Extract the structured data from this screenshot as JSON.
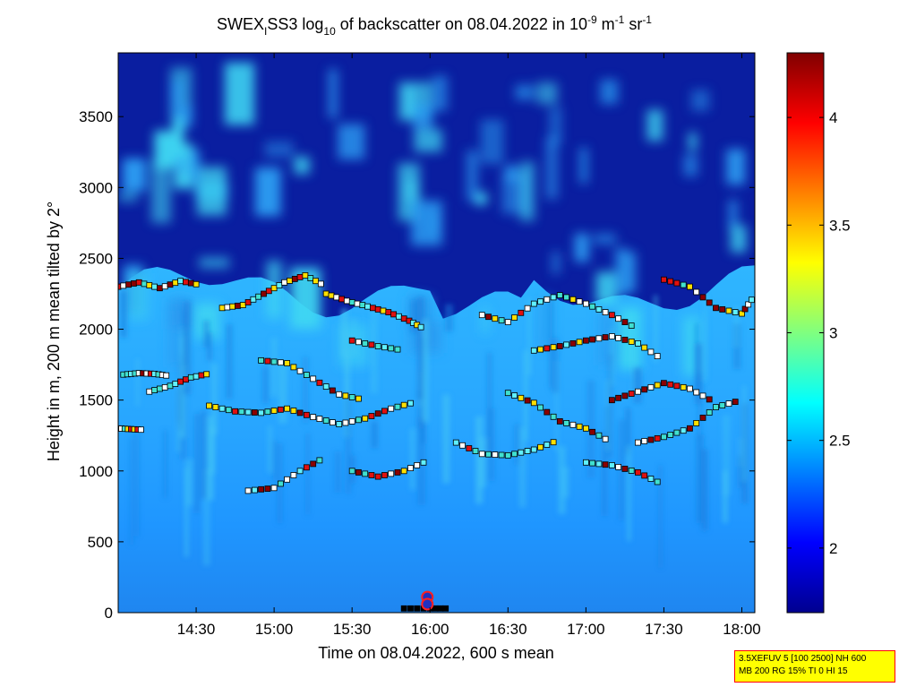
{
  "chart_data": {
    "type": "heatmap",
    "title_parts": {
      "t1": "SWEX",
      "t2": "I",
      "t3": "SS3 log",
      "t4": "10",
      "t5": " of backscatter on 08.04.2022 in 10",
      "t6": "-9",
      "t7": " m",
      "t8": "-1",
      "t9": " sr",
      "t10": "-1"
    },
    "xlabel": "Time on 08.04.2022, 600 s mean",
    "ylabel": "Height in m, 200 m mean tilted by 2°",
    "xlim": [
      "14:00",
      "18:05"
    ],
    "ylim": [
      0,
      3950
    ],
    "x_ticks": [
      "14:30",
      "15:00",
      "15:30",
      "16:00",
      "16:30",
      "17:00",
      "17:30",
      "18:00"
    ],
    "y_ticks": [
      0,
      500,
      1000,
      1500,
      2000,
      2500,
      3000,
      3500
    ],
    "colorbar": {
      "range": [
        1.7,
        4.3
      ],
      "ticks": [
        "2",
        "2.5",
        "3",
        "3.5",
        "4"
      ],
      "colormap": "jet"
    },
    "layers": [
      {
        "name_hidden": true,
        "height_range": [
          0,
          800
        ],
        "log_value": 2.35
      },
      {
        "name_hidden": true,
        "height_range": [
          800,
          2200
        ],
        "log_value": 2.55
      },
      {
        "name_hidden": true,
        "height_range": [
          2200,
          3950
        ],
        "log_value": 1.8
      }
    ],
    "marker_tracks": [
      {
        "x": [
          "14:00",
          "14:05",
          "14:10"
        ],
        "y": [
          1300,
          1295,
          1290
        ]
      },
      {
        "x": [
          "14:02",
          "14:08",
          "14:14",
          "14:20"
        ],
        "y": [
          1680,
          1690,
          1685,
          1670
        ]
      },
      {
        "x": [
          "14:12",
          "14:20",
          "14:28",
          "14:36"
        ],
        "y": [
          1560,
          1600,
          1660,
          1690
        ]
      },
      {
        "x": [
          "14:35",
          "14:45",
          "14:55",
          "15:05",
          "15:15",
          "15:25",
          "15:35",
          "15:45",
          "15:55"
        ],
        "y": [
          1460,
          1420,
          1410,
          1440,
          1380,
          1330,
          1370,
          1440,
          1490
        ]
      },
      {
        "x": [
          "14:00",
          "14:08",
          "14:16",
          "14:24",
          "14:32"
        ],
        "y": [
          2300,
          2330,
          2290,
          2340,
          2310
        ]
      },
      {
        "x": [
          "14:40",
          "14:48",
          "14:56",
          "15:04",
          "15:12",
          "15:20"
        ],
        "y": [
          2150,
          2170,
          2250,
          2330,
          2380,
          2300
        ]
      },
      {
        "x": [
          "15:20",
          "15:28",
          "15:36",
          "15:44",
          "15:52",
          "15:58"
        ],
        "y": [
          2250,
          2200,
          2160,
          2120,
          2060,
          2000
        ]
      },
      {
        "x": [
          "14:55",
          "15:05",
          "15:15",
          "15:25",
          "15:35"
        ],
        "y": [
          1780,
          1760,
          1650,
          1540,
          1500
        ]
      },
      {
        "x": [
          "15:30",
          "15:40",
          "15:50"
        ],
        "y": [
          1920,
          1880,
          1850
        ]
      },
      {
        "x": [
          "14:50",
          "15:00",
          "15:10",
          "15:20"
        ],
        "y": [
          860,
          880,
          1000,
          1100
        ]
      },
      {
        "x": [
          "15:30",
          "15:40",
          "15:50",
          "16:00"
        ],
        "y": [
          1000,
          960,
          1000,
          1080
        ]
      },
      {
        "x": [
          "16:10",
          "16:20",
          "16:30",
          "16:40",
          "16:50"
        ],
        "y": [
          1200,
          1120,
          1110,
          1150,
          1220
        ]
      },
      {
        "x": [
          "16:20",
          "16:30",
          "16:40",
          "16:50",
          "17:00",
          "17:10",
          "17:20"
        ],
        "y": [
          2100,
          2050,
          2180,
          2240,
          2180,
          2100,
          2000
        ]
      },
      {
        "x": [
          "16:30",
          "16:40",
          "16:50",
          "17:00",
          "17:10"
        ],
        "y": [
          1550,
          1480,
          1350,
          1300,
          1200
        ]
      },
      {
        "x": [
          "16:40",
          "16:50",
          "17:00",
          "17:10",
          "17:20",
          "17:30"
        ],
        "y": [
          1850,
          1880,
          1920,
          1950,
          1900,
          1780
        ]
      },
      {
        "x": [
          "17:00",
          "17:10",
          "17:20",
          "17:30"
        ],
        "y": [
          1060,
          1040,
          990,
          900
        ]
      },
      {
        "x": [
          "17:20",
          "17:30",
          "17:40",
          "17:50",
          "18:00"
        ],
        "y": [
          1200,
          1240,
          1300,
          1450,
          1500
        ]
      },
      {
        "x": [
          "17:30",
          "17:40",
          "17:50",
          "18:00",
          "18:05"
        ],
        "y": [
          2350,
          2300,
          2150,
          2110,
          2240
        ]
      },
      {
        "x": [
          "17:10",
          "17:20",
          "17:30",
          "17:40",
          "17:50"
        ],
        "y": [
          1500,
          1560,
          1620,
          1580,
          1480
        ]
      },
      {
        "x": [
          "15:50",
          "16:00",
          "16:08"
        ],
        "y": [
          30,
          30,
          30
        ]
      }
    ]
  },
  "infobox": {
    "line1": "3.5XEFUV 5 [100 2500] NH 600",
    "line2": "MB 200 RG 15% TI 0 HI 15"
  },
  "colors": {
    "background_low": "#0a1ea0",
    "layer_mid": "#1e9bff",
    "layer_low": "#1f8ef5",
    "cloud": "#3fd7f2"
  }
}
